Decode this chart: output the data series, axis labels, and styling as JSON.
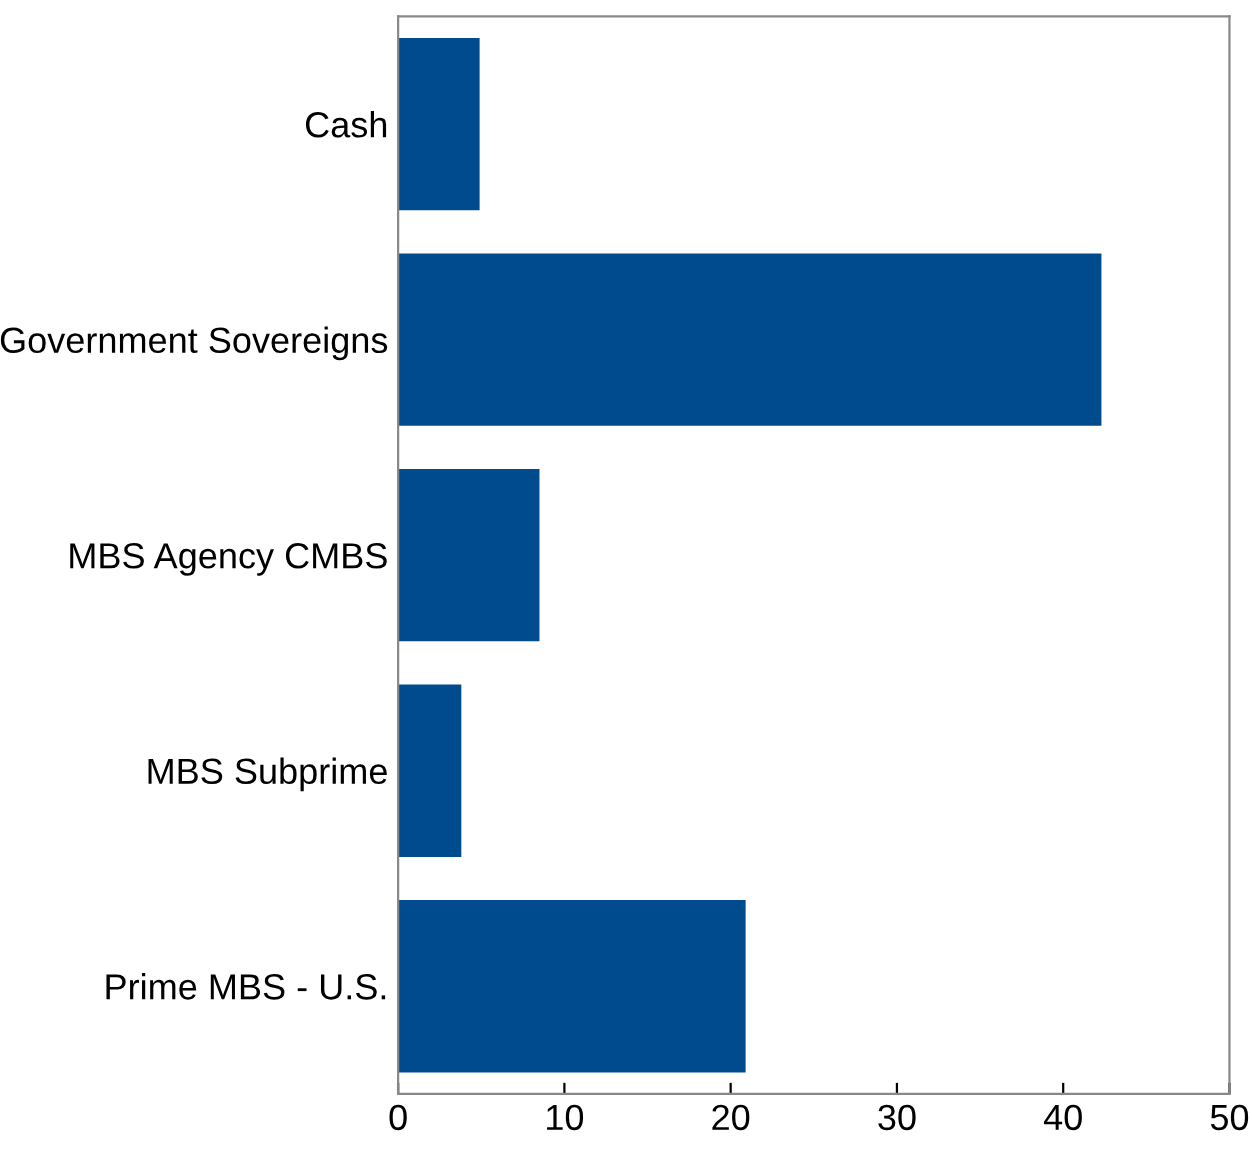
{
  "chart_data": {
    "type": "bar",
    "orientation": "horizontal",
    "categories": [
      "Cash",
      "Government Sovereigns",
      "MBS Agency CMBS",
      "MBS Subprime",
      "Prime MBS - U.S."
    ],
    "values": [
      4.9,
      42.3,
      8.5,
      3.8,
      20.9
    ],
    "color": "#004b8d",
    "xlim": [
      0,
      50
    ],
    "xticks": [
      0,
      10,
      20,
      30,
      40,
      50
    ],
    "grid": false,
    "legend": false
  }
}
